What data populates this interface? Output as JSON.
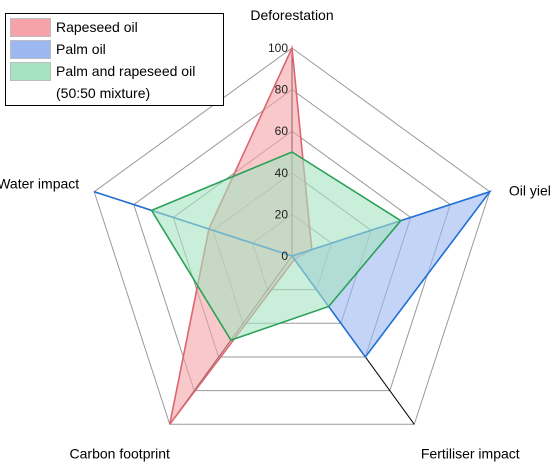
{
  "chart_data": {
    "type": "radar",
    "axes": [
      "Deforestation",
      "Oil yield",
      "Fertiliser impact",
      "Carbon footprint",
      "Water impact"
    ],
    "ticks": [
      "0",
      "20",
      "40",
      "60",
      "80",
      "100"
    ],
    "range": [
      0,
      100
    ],
    "series": [
      {
        "name": "Rapeseed oil",
        "values": [
          100,
          10,
          2,
          100,
          42
        ],
        "fill": "#f5a3a8",
        "stroke": "#dd6670"
      },
      {
        "name": "Palm oil",
        "values": [
          0,
          100,
          60,
          0,
          100
        ],
        "fill": "#9db8f0",
        "stroke": "#1f6fd6"
      },
      {
        "name": "Palm and rapeseed oil",
        "name_line2": "(50:50 mixture)",
        "values": [
          50,
          55,
          30,
          50,
          71
        ],
        "fill": "#a5e3c1",
        "stroke": "#2aa157"
      }
    ],
    "legend_position": "top-left"
  }
}
